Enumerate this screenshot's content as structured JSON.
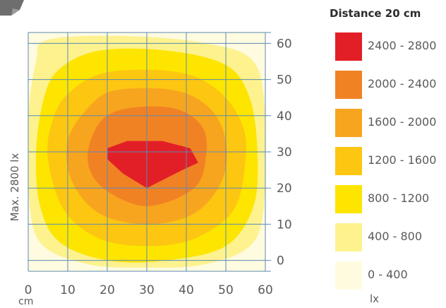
{
  "chart_data": {
    "type": "heatmap",
    "title": "Distance 20 cm",
    "ylabel": "Max. 2800 lx",
    "xlabel_unit": "cm",
    "legend_unit": "lx",
    "x_ticks": [
      "0",
      "10",
      "20",
      "30",
      "40",
      "50",
      "60"
    ],
    "y_ticks": [
      "0",
      "10",
      "20",
      "30",
      "40",
      "50",
      "60"
    ],
    "xlim": [
      0,
      60
    ],
    "ylim": [
      -3,
      63
    ],
    "grid": true,
    "legend_position": "right",
    "max_value": 2800,
    "legend": [
      {
        "label": "2400 - 2800",
        "color": "#e21f26"
      },
      {
        "label": "2000 - 2400",
        "color": "#f08224"
      },
      {
        "label": "1600 - 2000",
        "color": "#f7a51e"
      },
      {
        "label": "1200 - 1600",
        "color": "#fdc611"
      },
      {
        "label": "800 - 1200",
        "color": "#fde500"
      },
      {
        "label": "400 - 800",
        "color": "#fdf28e"
      },
      {
        "label": "0 - 400",
        "color": "#fefbe0"
      }
    ],
    "bands": [
      {
        "range": "0 - 400",
        "polygon": [
          [
            0,
            63
          ],
          [
            60,
            63
          ],
          [
            60,
            -3
          ],
          [
            0,
            -3
          ]
        ]
      },
      {
        "range": "400 - 800",
        "polygon": [
          [
            5,
            61
          ],
          [
            25,
            62
          ],
          [
            45,
            60
          ],
          [
            57,
            55
          ],
          [
            60,
            40
          ],
          [
            60,
            20
          ],
          [
            57,
            5
          ],
          [
            45,
            -1
          ],
          [
            30,
            -2
          ],
          [
            15,
            -1
          ],
          [
            3,
            5
          ],
          [
            0,
            20
          ],
          [
            0,
            40
          ],
          [
            2,
            55
          ]
        ]
      },
      {
        "range": "800 - 1200",
        "polygon": [
          [
            8,
            53
          ],
          [
            18,
            58
          ],
          [
            35,
            58
          ],
          [
            50,
            54
          ],
          [
            56,
            45
          ],
          [
            58,
            30
          ],
          [
            57,
            15
          ],
          [
            50,
            4
          ],
          [
            35,
            0
          ],
          [
            20,
            0
          ],
          [
            8,
            5
          ],
          [
            3,
            15
          ],
          [
            2,
            30
          ],
          [
            4,
            45
          ]
        ]
      },
      {
        "range": "1200 - 1600",
        "polygon": [
          [
            10,
            46
          ],
          [
            20,
            52
          ],
          [
            38,
            52
          ],
          [
            48,
            47
          ],
          [
            54,
            38
          ],
          [
            55,
            28
          ],
          [
            52,
            14
          ],
          [
            42,
            6
          ],
          [
            30,
            4
          ],
          [
            18,
            6
          ],
          [
            9,
            14
          ],
          [
            5,
            28
          ],
          [
            6,
            38
          ]
        ]
      },
      {
        "range": "1600 - 2000",
        "polygon": [
          [
            15,
            42
          ],
          [
            22,
            47
          ],
          [
            37,
            47
          ],
          [
            46,
            42
          ],
          [
            50,
            33
          ],
          [
            49,
            22
          ],
          [
            42,
            13
          ],
          [
            30,
            10
          ],
          [
            18,
            13
          ],
          [
            11,
            22
          ],
          [
            10,
            33
          ]
        ]
      },
      {
        "range": "2000 - 2400",
        "polygon": [
          [
            18,
            38
          ],
          [
            25,
            42
          ],
          [
            37,
            42
          ],
          [
            44,
            37
          ],
          [
            45,
            29
          ],
          [
            42,
            20
          ],
          [
            30,
            15
          ],
          [
            19,
            20
          ],
          [
            15,
            28
          ]
        ]
      },
      {
        "range": "2400 - 2800",
        "polygon": [
          [
            20,
            31
          ],
          [
            25,
            33
          ],
          [
            34,
            33
          ],
          [
            41,
            31
          ],
          [
            43,
            27
          ],
          [
            39,
            25
          ],
          [
            30,
            20
          ],
          [
            24,
            24
          ],
          [
            20,
            28
          ]
        ]
      }
    ]
  }
}
